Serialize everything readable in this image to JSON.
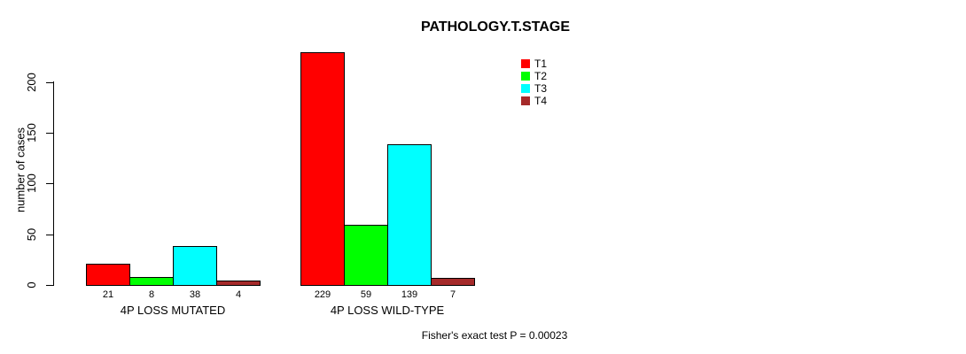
{
  "chart_data": {
    "type": "bar",
    "title": "PATHOLOGY.T.STAGE",
    "ylabel": "number of cases",
    "xlabel": "",
    "categories": [
      "4P LOSS MUTATED",
      "4P LOSS WILD-TYPE"
    ],
    "series": [
      {
        "name": "T1",
        "color": "#ff0000",
        "values": [
          21,
          229
        ]
      },
      {
        "name": "T2",
        "color": "#00ff00",
        "values": [
          8,
          59
        ]
      },
      {
        "name": "T3",
        "color": "#00ffff",
        "values": [
          38,
          139
        ]
      },
      {
        "name": "T4",
        "color": "#a52a2a",
        "values": [
          4,
          7
        ]
      }
    ],
    "yticks": [
      0,
      50,
      100,
      150,
      200
    ],
    "ylim": [
      0,
      229
    ],
    "grid": false,
    "legend_position": "top-right",
    "bar_value_labels_shown": true,
    "annotation": "Fisher's exact test P = 0.00023"
  }
}
